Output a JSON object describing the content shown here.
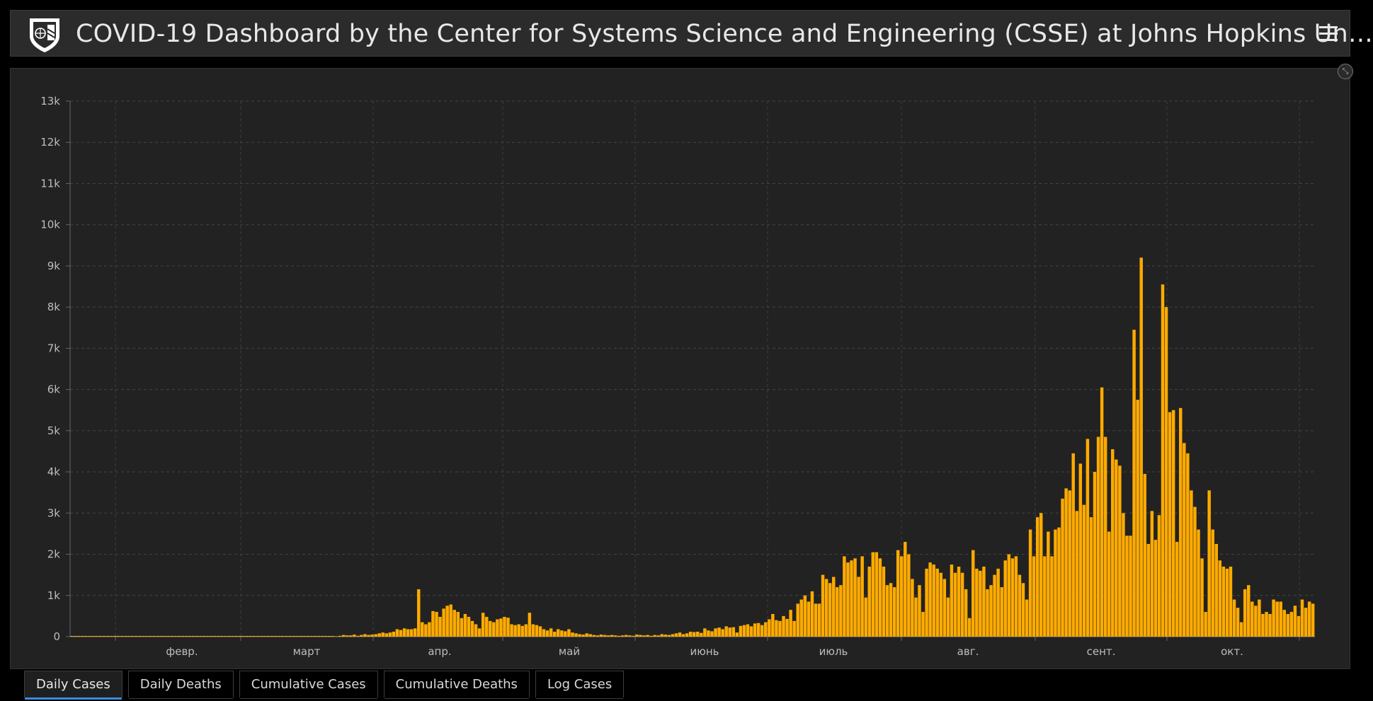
{
  "header": {
    "title": "COVID-19 Dashboard by the Center for Systems Science and Engineering (CSSE) at Johns Hopkins Un…",
    "logo_icon": "university-shield-icon",
    "menu_icon": "hamburger-menu-icon"
  },
  "chart_data": {
    "type": "bar",
    "title": "",
    "xlabel": "",
    "ylabel": "",
    "bar_color": "#ffab00",
    "ylim": [
      0,
      13000
    ],
    "y_ticks": [
      "0",
      "1k",
      "2k",
      "3k",
      "4k",
      "5k",
      "6k",
      "7k",
      "8k",
      "9k",
      "10k",
      "11k",
      "12k",
      "13k"
    ],
    "x_ticks": [
      "февр.",
      "март",
      "апр.",
      "май",
      "июнь",
      "июль",
      "авг.",
      "сент.",
      "окт."
    ],
    "grid": true,
    "values": [
      0,
      0,
      0,
      0,
      0,
      0,
      0,
      0,
      0,
      0,
      0,
      0,
      0,
      0,
      0,
      0,
      0,
      0,
      0,
      0,
      0,
      0,
      0,
      0,
      0,
      0,
      0,
      0,
      0,
      0,
      0,
      0,
      0,
      0,
      0,
      0,
      0,
      0,
      0,
      0,
      0,
      0,
      0,
      0,
      0,
      0,
      0,
      0,
      0,
      0,
      0,
      0,
      0,
      0,
      0,
      0,
      0,
      0,
      0,
      0,
      0,
      0,
      0,
      0,
      0,
      0,
      0,
      0,
      0,
      0,
      0,
      0,
      0,
      0,
      10,
      20,
      40,
      30,
      30,
      50,
      20,
      40,
      60,
      40,
      50,
      60,
      80,
      100,
      80,
      100,
      120,
      180,
      160,
      200,
      180,
      180,
      200,
      1150,
      350,
      300,
      350,
      620,
      600,
      480,
      680,
      750,
      780,
      650,
      600,
      450,
      550,
      480,
      380,
      300,
      200,
      580,
      480,
      380,
      350,
      420,
      440,
      480,
      460,
      300,
      280,
      300,
      260,
      300,
      580,
      300,
      280,
      250,
      180,
      150,
      200,
      120,
      180,
      150,
      130,
      180,
      100,
      80,
      60,
      50,
      80,
      60,
      40,
      30,
      50,
      40,
      30,
      40,
      30,
      20,
      30,
      40,
      30,
      20,
      50,
      40,
      30,
      40,
      20,
      40,
      30,
      60,
      50,
      40,
      60,
      80,
      100,
      60,
      80,
      120,
      110,
      120,
      90,
      200,
      150,
      130,
      200,
      220,
      180,
      250,
      220,
      230,
      100,
      260,
      280,
      300,
      250,
      320,
      330,
      280,
      350,
      420,
      550,
      400,
      380,
      500,
      430,
      650,
      380,
      800,
      900,
      1000,
      850,
      1100,
      800,
      800,
      1500,
      1400,
      1300,
      1450,
      1200,
      1250,
      1950,
      1800,
      1850,
      1900,
      1450,
      1950,
      950,
      1700,
      2050,
      2050,
      1900,
      1700,
      1250,
      1300,
      1200,
      2100,
      1950,
      2300,
      2000,
      1400,
      950,
      1250,
      600,
      1650,
      1800,
      1750,
      1650,
      1550,
      1400,
      950,
      1750,
      1550,
      1700,
      1550,
      1150,
      450,
      2100,
      1650,
      1600,
      1700,
      1150,
      1250,
      1500,
      1650,
      1200,
      1850,
      2000,
      1900,
      1950,
      1500,
      1300,
      900,
      2600,
      1950,
      2900,
      3000,
      1950,
      2550,
      1950,
      2600,
      2650,
      3350,
      3600,
      3550,
      4450,
      3050,
      4200,
      3200,
      4800,
      2900,
      4000,
      4850,
      6050,
      4850,
      2550,
      4550,
      4300,
      4150,
      3000,
      2450,
      2450,
      7450,
      5750,
      9200,
      3950,
      2250,
      3050,
      2350,
      2950,
      8550,
      8000,
      5450,
      5500,
      2300,
      5550,
      4700,
      4450,
      3550,
      3150,
      2600,
      1900,
      600,
      3550,
      2600,
      2250,
      1850,
      1700,
      1650,
      1700,
      900,
      700,
      350,
      1150,
      1250,
      850,
      750,
      900,
      550,
      600,
      550,
      900,
      850,
      850,
      650,
      550,
      600,
      750,
      500,
      900,
      700,
      850,
      800
    ],
    "_note": "ignored"
  },
  "tabs": [
    {
      "label": "Daily Cases",
      "active": true
    },
    {
      "label": "Daily Deaths",
      "active": false
    },
    {
      "label": "Cumulative Cases",
      "active": false
    },
    {
      "label": "Cumulative Deaths",
      "active": false
    },
    {
      "label": "Log Cases",
      "active": false
    }
  ],
  "colors": {
    "bar": "#ffab00",
    "background": "#222222",
    "header": "#2b2b2b",
    "active_tab_underline": "#3a8de0"
  }
}
